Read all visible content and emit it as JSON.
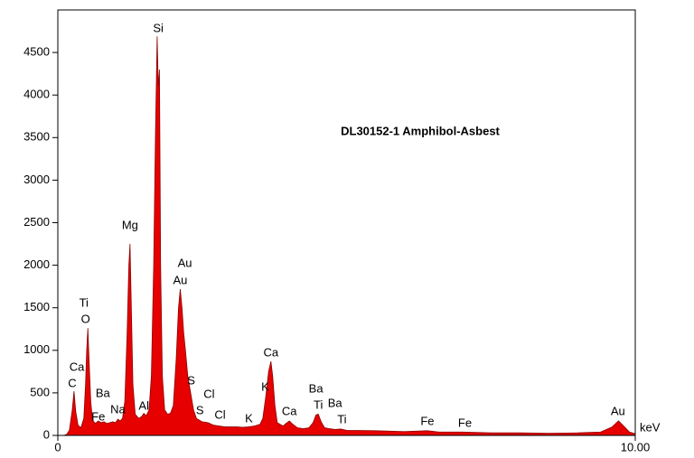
{
  "chart_data": {
    "type": "area",
    "title": "DL30152-1 Amphibol-Asbest",
    "xlabel": "keV",
    "color": "#e60000",
    "edge_color": "#8b0000",
    "xlim": [
      0,
      10
    ],
    "ylim": [
      0,
      5000
    ],
    "xticks": [
      0,
      {
        "value": 10,
        "label": "10.00"
      }
    ],
    "yticks": [
      0,
      500,
      1000,
      1500,
      2000,
      2500,
      3000,
      3500,
      4000,
      4500
    ],
    "x": [
      0.0,
      0.1,
      0.15,
      0.2,
      0.25,
      0.28,
      0.31,
      0.35,
      0.4,
      0.45,
      0.48,
      0.5,
      0.52,
      0.54,
      0.57,
      0.6,
      0.65,
      0.7,
      0.75,
      0.8,
      0.85,
      0.9,
      0.95,
      1.0,
      1.04,
      1.08,
      1.12,
      1.16,
      1.2,
      1.23,
      1.25,
      1.27,
      1.3,
      1.34,
      1.4,
      1.45,
      1.49,
      1.53,
      1.58,
      1.62,
      1.66,
      1.69,
      1.72,
      1.74,
      1.76,
      1.78,
      1.81,
      1.85,
      1.9,
      1.95,
      2.0,
      2.05,
      2.09,
      2.12,
      2.15,
      2.18,
      2.21,
      2.25,
      2.3,
      2.35,
      2.4,
      2.45,
      2.5,
      2.6,
      2.7,
      2.8,
      2.9,
      3.0,
      3.1,
      3.2,
      3.3,
      3.4,
      3.5,
      3.55,
      3.6,
      3.65,
      3.69,
      3.72,
      3.76,
      3.8,
      3.9,
      3.95,
      4.01,
      4.07,
      4.15,
      4.25,
      4.35,
      4.42,
      4.47,
      4.51,
      4.56,
      4.62,
      4.7,
      4.8,
      4.9,
      5.0,
      5.5,
      6.0,
      6.4,
      6.6,
      7.0,
      7.5,
      8.0,
      8.5,
      9.0,
      9.4,
      9.6,
      9.71,
      9.8,
      9.9,
      10.0
    ],
    "values": [
      0,
      0,
      10,
      60,
      300,
      520,
      280,
      120,
      90,
      200,
      600,
      1000,
      1260,
      900,
      400,
      180,
      140,
      170,
      150,
      160,
      140,
      150,
      160,
      150,
      190,
      170,
      200,
      400,
      1200,
      2000,
      2250,
      1600,
      600,
      250,
      200,
      220,
      260,
      230,
      300,
      700,
      2000,
      3500,
      4690,
      4100,
      4300,
      2000,
      700,
      300,
      250,
      260,
      350,
      900,
      1500,
      1720,
      1500,
      1200,
      1000,
      700,
      500,
      300,
      200,
      180,
      160,
      150,
      120,
      110,
      100,
      100,
      100,
      95,
      100,
      110,
      130,
      200,
      450,
      750,
      870,
      700,
      350,
      150,
      110,
      140,
      170,
      130,
      90,
      80,
      90,
      150,
      240,
      250,
      160,
      90,
      80,
      70,
      75,
      60,
      55,
      45,
      55,
      40,
      40,
      30,
      30,
      25,
      30,
      40,
      100,
      170,
      110,
      40,
      20
    ],
    "annotations": [
      {
        "text": "C",
        "x": 0.25,
        "y": 605
      },
      {
        "text": "Ca",
        "x": 0.33,
        "y": 796
      },
      {
        "text": "O",
        "x": 0.48,
        "y": 1359
      },
      {
        "text": "Ti",
        "x": 0.45,
        "y": 1550
      },
      {
        "text": "Fe",
        "x": 0.7,
        "y": 212
      },
      {
        "text": "Ba",
        "x": 0.78,
        "y": 488
      },
      {
        "text": "Na",
        "x": 1.04,
        "y": 297
      },
      {
        "text": "Mg",
        "x": 1.25,
        "y": 2463
      },
      {
        "text": "Al",
        "x": 1.49,
        "y": 340
      },
      {
        "text": "Si",
        "x": 1.74,
        "y": 4777
      },
      {
        "text": "Au",
        "x": 2.12,
        "y": 1815
      },
      {
        "text": "Au",
        "x": 2.2,
        "y": 2017
      },
      {
        "text": "S",
        "x": 2.31,
        "y": 637
      },
      {
        "text": "S",
        "x": 2.46,
        "y": 287
      },
      {
        "text": "Cl",
        "x": 2.62,
        "y": 478
      },
      {
        "text": "Cl",
        "x": 2.81,
        "y": 234
      },
      {
        "text": "K",
        "x": 3.31,
        "y": 191
      },
      {
        "text": "K",
        "x": 3.59,
        "y": 563
      },
      {
        "text": "Ca",
        "x": 3.69,
        "y": 966
      },
      {
        "text": "Ca",
        "x": 4.01,
        "y": 276
      },
      {
        "text": "Ba",
        "x": 4.47,
        "y": 541
      },
      {
        "text": "Ti",
        "x": 4.51,
        "y": 350
      },
      {
        "text": "Ba",
        "x": 4.8,
        "y": 372
      },
      {
        "text": "Ti",
        "x": 4.92,
        "y": 180
      },
      {
        "text": "Fe",
        "x": 6.4,
        "y": 159
      },
      {
        "text": "Fe",
        "x": 7.05,
        "y": 138
      },
      {
        "text": "Au",
        "x": 9.7,
        "y": 276
      }
    ]
  }
}
